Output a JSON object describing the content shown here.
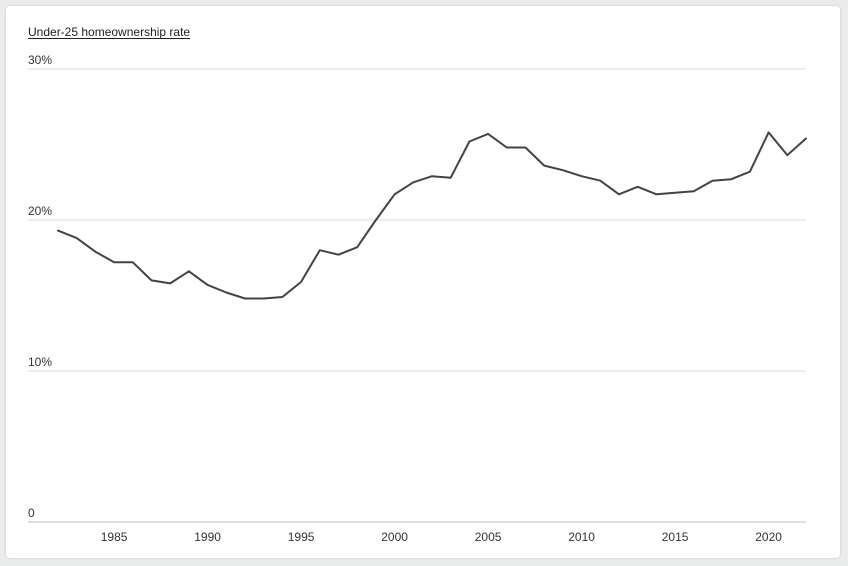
{
  "chart_data": {
    "type": "line",
    "title": "Under-25 homeownership rate",
    "xlabel": "",
    "ylabel": "",
    "xlim": [
      1982,
      2022
    ],
    "ylim": [
      0,
      30
    ],
    "y_ticks": [
      {
        "value": 0,
        "label": "0"
      },
      {
        "value": 10,
        "label": "10%"
      },
      {
        "value": 20,
        "label": "20%"
      },
      {
        "value": 30,
        "label": "30%"
      }
    ],
    "x_ticks": [
      {
        "value": 1985,
        "label": "1985"
      },
      {
        "value": 1990,
        "label": "1990"
      },
      {
        "value": 1995,
        "label": "1995"
      },
      {
        "value": 2000,
        "label": "2000"
      },
      {
        "value": 2005,
        "label": "2005"
      },
      {
        "value": 2010,
        "label": "2010"
      },
      {
        "value": 2015,
        "label": "2015"
      },
      {
        "value": 2020,
        "label": "2020"
      }
    ],
    "grid": "horizontal",
    "line_color": "#3d4647",
    "grid_color": "#dcdcdc",
    "series": [
      {
        "x": [
          1982,
          1983,
          1984,
          1985,
          1986,
          1987,
          1988,
          1989,
          1990,
          1991,
          1992,
          1993,
          1994,
          1995,
          1996,
          1997,
          1998,
          1999,
          2000,
          2001,
          2002,
          2003,
          2004,
          2005,
          2006,
          2007,
          2008,
          2009,
          2010,
          2011,
          2012,
          2013,
          2014,
          2015,
          2016,
          2017,
          2018,
          2019,
          2020,
          2021,
          2022
        ],
        "values": [
          19.3,
          18.8,
          17.9,
          17.2,
          17.2,
          16.0,
          15.8,
          16.6,
          15.7,
          15.2,
          14.8,
          14.8,
          14.9,
          15.9,
          18.0,
          17.7,
          18.2,
          20.0,
          21.7,
          22.5,
          22.9,
          22.8,
          25.2,
          25.7,
          24.8,
          24.8,
          23.6,
          23.3,
          22.9,
          22.6,
          21.7,
          22.2,
          21.7,
          21.8,
          21.9,
          22.6,
          22.7,
          23.2,
          25.8,
          24.3,
          25.4
        ]
      }
    ]
  }
}
